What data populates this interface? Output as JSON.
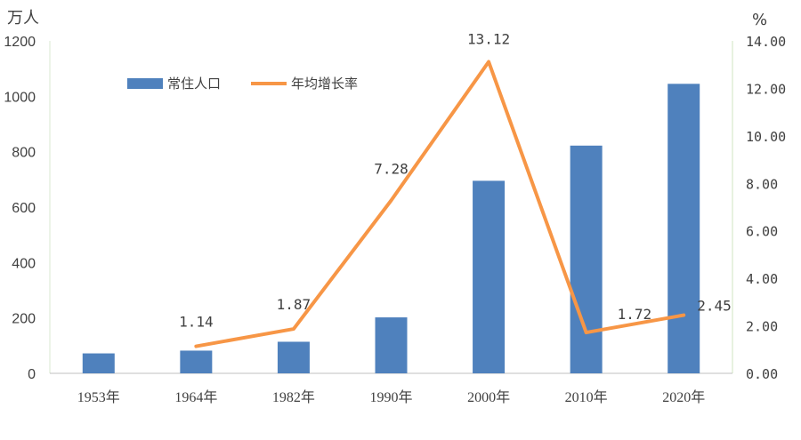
{
  "chart_data": {
    "type": "bar+line",
    "categories": [
      "1953年",
      "1964年",
      "1982年",
      "1990年",
      "2000年",
      "2010年",
      "2020年"
    ],
    "series": [
      {
        "name": "常住人口",
        "type": "bar",
        "axis": "left",
        "color": "#4f81bd",
        "values": [
          72,
          82,
          114,
          202,
          695,
          822,
          1045
        ]
      },
      {
        "name": "年均增长率",
        "type": "line",
        "axis": "right",
        "color": "#f79646",
        "values": [
          null,
          1.14,
          1.87,
          7.28,
          13.12,
          1.72,
          2.45
        ],
        "labels": [
          null,
          "1.14",
          "1.87",
          "7.28",
          "13.12",
          "1.72",
          "2.45"
        ]
      }
    ],
    "left_axis": {
      "unit": "万人",
      "ylim": [
        0,
        1200
      ],
      "ticks": [
        "0",
        "200",
        "400",
        "600",
        "800",
        "1000",
        "1200"
      ]
    },
    "right_axis": {
      "unit": "%",
      "ylim": [
        0,
        14
      ],
      "ticks": [
        "0.00",
        "2.00",
        "4.00",
        "6.00",
        "8.00",
        "10.00",
        "12.00",
        "14.00"
      ]
    },
    "legend": {
      "placement": "top-left-inside"
    },
    "grid": false
  }
}
